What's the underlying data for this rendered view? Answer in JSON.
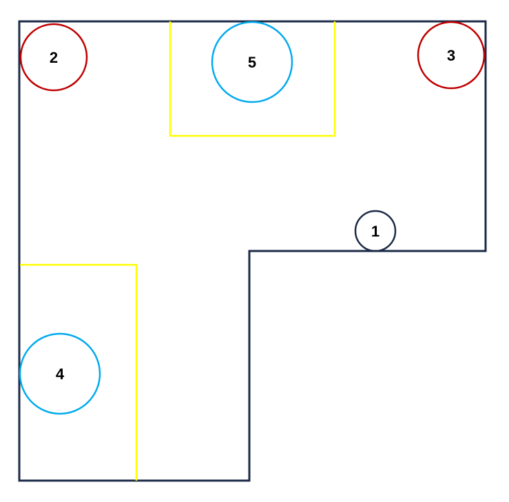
{
  "colors": {
    "background": "#ffffff",
    "outline": "#1b2a47",
    "zone": "#ffff00",
    "red_marker": "#c00000",
    "blue_marker": "#00aaee",
    "label": "#000000"
  },
  "markers": [
    {
      "id": "marker-1",
      "label": "1",
      "color": "outline"
    },
    {
      "id": "marker-2",
      "label": "2",
      "color": "red_marker"
    },
    {
      "id": "marker-3",
      "label": "3",
      "color": "red_marker"
    },
    {
      "id": "marker-4",
      "label": "4",
      "color": "blue_marker"
    },
    {
      "id": "marker-5",
      "label": "5",
      "color": "blue_marker"
    }
  ]
}
